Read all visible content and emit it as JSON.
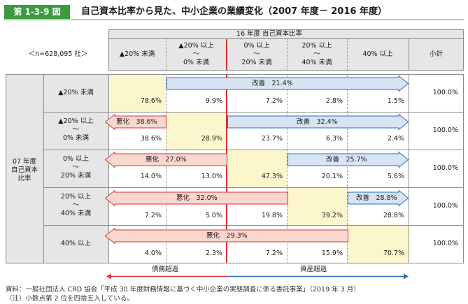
{
  "figure_label": "第 1-3-9 図",
  "figure_title": "自己資本比率から見た、中小企業の業績変化（2007 年度－ 2016 年度）",
  "sample_size": "＜n=628,095 社＞",
  "column_group_header": "16 年度 自己資本比率",
  "columns": [
    {
      "line1": "▲20% 未満",
      "line2": "",
      "line3": ""
    },
    {
      "line1": "▲20% 以上",
      "line2": "～",
      "line3": "0% 未満"
    },
    {
      "line1": "0% 以上",
      "line2": "～",
      "line3": "20% 未満"
    },
    {
      "line1": "20% 以上",
      "line2": "～",
      "line3": "40% 未満"
    },
    {
      "line1": "40% 以上",
      "line2": "",
      "line3": ""
    }
  ],
  "subtotal_header": "小計",
  "row_group_label": [
    "07 年度",
    "自己資本",
    "比率"
  ],
  "rows": [
    {
      "line1": "▲20% 未満",
      "line2": "",
      "line3": "",
      "values": [
        "78.6%",
        "9.9%",
        "7.2%",
        "2.8%",
        "1.5%"
      ],
      "subtotal": "100.0%"
    },
    {
      "line1": "▲20% 以上",
      "line2": "～",
      "line3": "0% 未満",
      "values": [
        "38.6%",
        "28.9%",
        "23.7%",
        "6.3%",
        "2.4%"
      ],
      "subtotal": "100.0%"
    },
    {
      "line1": "0% 以上",
      "line2": "～",
      "line3": "20% 未満",
      "values": [
        "14.0%",
        "13.0%",
        "47.3%",
        "20.1%",
        "5.6%"
      ],
      "subtotal": "100.0%"
    },
    {
      "line1": "20% 以上",
      "line2": "～",
      "line3": "40% 未満",
      "values": [
        "7.2%",
        "5.0%",
        "19.8%",
        "39.2%",
        "28.8%"
      ],
      "subtotal": "100.0%"
    },
    {
      "line1": "40% 以上",
      "line2": "",
      "line3": "",
      "values": [
        "4.0%",
        "2.3%",
        "7.2%",
        "15.9%",
        "70.7%"
      ],
      "subtotal": "100.0%"
    }
  ],
  "arrows": [
    {
      "label": "改善　21.4%",
      "direction": "right",
      "row": 0
    },
    {
      "label": "悪化　38.6%",
      "direction": "left",
      "row": 1
    },
    {
      "label": "改善　32.4%",
      "direction": "right",
      "row": 1
    },
    {
      "label": "悪化　27.0%",
      "direction": "left",
      "row": 2
    },
    {
      "label": "改善　25.7%",
      "direction": "right",
      "row": 2
    },
    {
      "label": "悪化　32.0%",
      "direction": "left",
      "row": 3
    },
    {
      "label": "改善　28.8%",
      "direction": "right",
      "row": 3
    },
    {
      "label": "悪化　29.3%",
      "direction": "left",
      "row": 4
    }
  ],
  "bottom_left_label": "債務超過",
  "bottom_right_label": "資産超過",
  "colors": {
    "accent_green": "#3d9a3f",
    "worsen_fill": "#f9d7cf",
    "worsen_stroke": "#d8333a",
    "improve_fill": "#d7e4f4",
    "improve_stroke": "#2f6db5",
    "diagonal": "#fbf6cc",
    "divider_red": "#d8333a",
    "axis_blue": "#2f6db5"
  },
  "source_note": "資料：一般社団法人 CRD 協会「平成 30 年度財務情報に基づく中小企業の実態調査に係る委託事業」（2019 年 3 月）",
  "rounding_note": "（注）小数点第 2 位を四捨五入している。"
}
